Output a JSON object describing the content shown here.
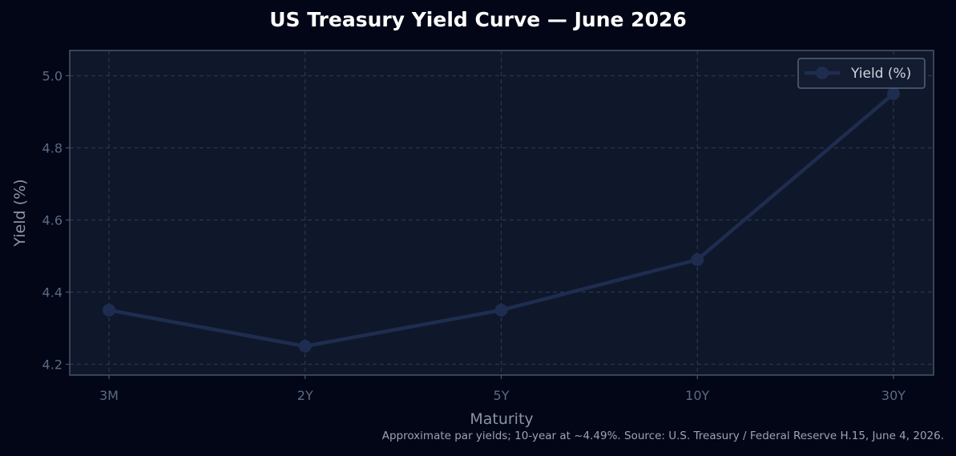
{
  "chart_data": {
    "type": "line",
    "title": "US Treasury Yield Curve — June 2026",
    "xlabel": "Maturity",
    "ylabel": "Yield (%)",
    "categories": [
      "3M",
      "2Y",
      "5Y",
      "10Y",
      "30Y"
    ],
    "series": [
      {
        "name": "Yield (%)",
        "values": [
          4.35,
          4.25,
          4.35,
          4.49,
          4.95
        ]
      }
    ],
    "ylim": [
      4.17,
      5.07
    ],
    "yticks": [
      4.2,
      4.4,
      4.6,
      4.8,
      5.0
    ],
    "ytick_labels": [
      "4.2",
      "4.4",
      "4.6",
      "4.8",
      "5.0"
    ],
    "grid": true,
    "legend_position": "top-right",
    "footnote": "Approximate par yields; 10-year at ~4.49%. Source: U.S. Treasury / Federal Reserve H.15, June 4, 2026.",
    "colors": {
      "background": "#020617",
      "plot_background": "#0f172a",
      "line": "#1e2d4f",
      "grid": "#2a3650",
      "spine": "#4b5568"
    }
  }
}
